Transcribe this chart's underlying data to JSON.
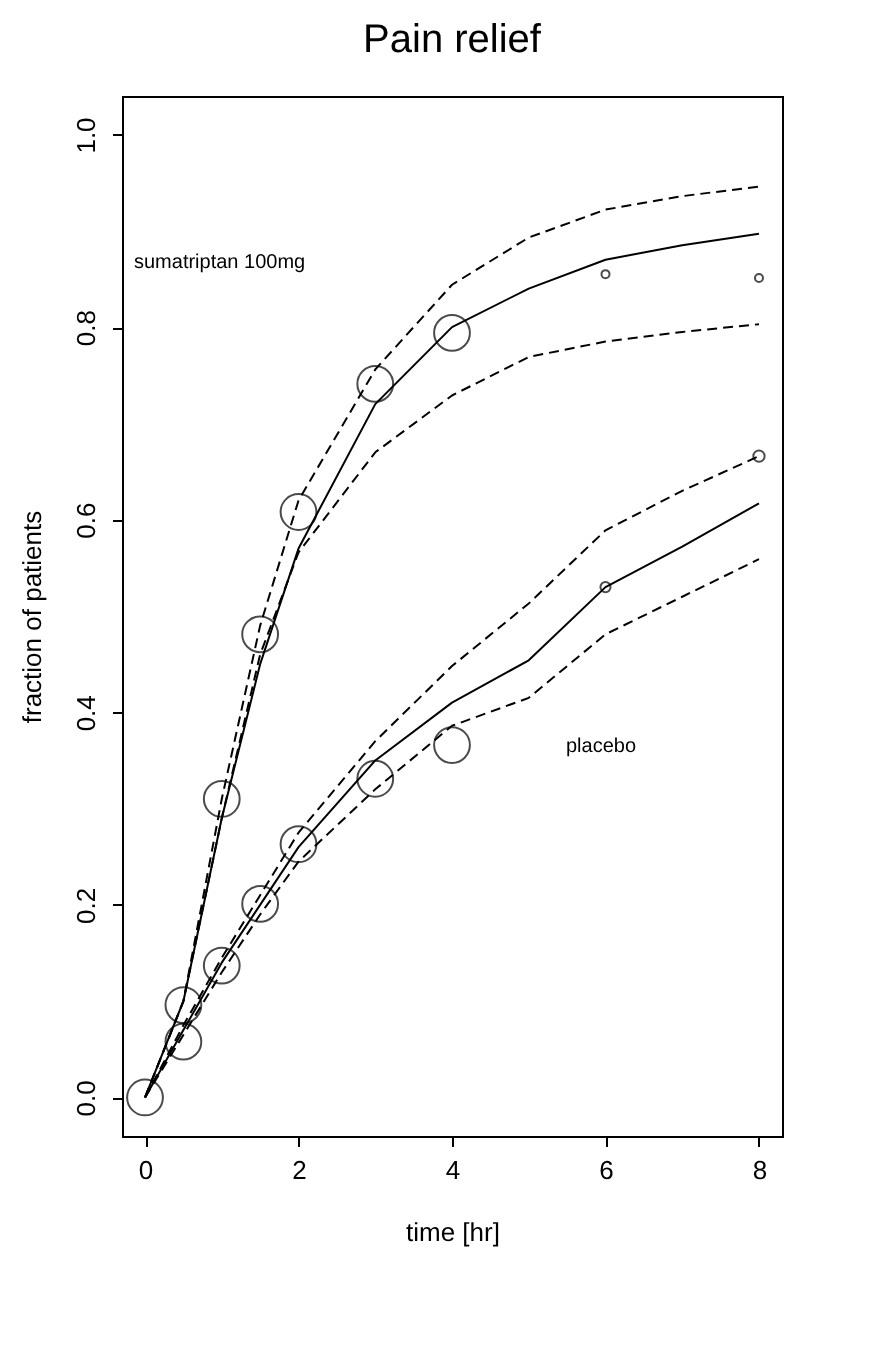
{
  "chart_data": {
    "type": "line",
    "title": "Pain relief",
    "xlabel": "time [hr]",
    "ylabel": "fraction of patients",
    "xlim": [
      -0.3,
      8.3
    ],
    "ylim": [
      -0.04,
      1.04
    ],
    "xticks": [
      0,
      2,
      4,
      6,
      8
    ],
    "yticks": [
      {
        "value": 0,
        "label": "0.0"
      },
      {
        "value": 0.2,
        "label": "0.2"
      },
      {
        "value": 0.4,
        "label": "0.4"
      },
      {
        "value": 0.6,
        "label": "0.6"
      },
      {
        "value": 0.8,
        "label": "0.8"
      },
      {
        "value": 1,
        "label": "1.0"
      }
    ],
    "grid": false,
    "annotations": [
      "sumatriptan 100mg",
      "placebo"
    ],
    "series": [
      {
        "color": "#000000",
        "line_style": "solid",
        "x": [
          0,
          0.5,
          1,
          1.5,
          2,
          3,
          4,
          5,
          6,
          7,
          8
        ],
        "values": [
          0,
          0.1,
          0.29,
          0.45,
          0.57,
          0.72,
          0.8,
          0.84,
          0.87,
          0.885,
          0.897
        ]
      },
      {
        "color": "#000000",
        "line_style": "dashed",
        "x": [
          0,
          0.5,
          1,
          1.5,
          2,
          3,
          4,
          5,
          6,
          7,
          8
        ],
        "values": [
          0,
          0.1,
          0.31,
          0.49,
          0.62,
          0.756,
          0.844,
          0.893,
          0.922,
          0.936,
          0.946
        ]
      },
      {
        "color": "#000000",
        "line_style": "dashed",
        "x": [
          0,
          0.5,
          1,
          1.5,
          2,
          3,
          4,
          5,
          6,
          7,
          8
        ],
        "values": [
          0,
          0.1,
          0.29,
          0.46,
          0.566,
          0.67,
          0.729,
          0.769,
          0.785,
          0.795,
          0.803
        ]
      },
      {
        "color": "#000000",
        "line_style": "solid",
        "x": [
          0,
          0.5,
          1,
          1.5,
          2,
          3,
          4,
          5,
          6,
          7,
          8
        ],
        "values": [
          0,
          0.07,
          0.14,
          0.2,
          0.26,
          0.35,
          0.41,
          0.454,
          0.53,
          0.572,
          0.617
        ]
      },
      {
        "color": "#000000",
        "line_style": "dashed",
        "x": [
          0,
          0.5,
          1,
          1.5,
          2,
          3,
          4,
          5,
          6,
          7,
          8
        ],
        "values": [
          0,
          0.075,
          0.145,
          0.21,
          0.275,
          0.37,
          0.448,
          0.513,
          0.589,
          0.63,
          0.666
        ]
      },
      {
        "color": "#000000",
        "line_style": "dashed",
        "x": [
          0,
          0.5,
          1,
          1.5,
          2,
          3,
          4,
          5,
          6,
          7,
          8
        ],
        "values": [
          0,
          0.065,
          0.13,
          0.19,
          0.245,
          0.32,
          0.386,
          0.415,
          0.481,
          0.52,
          0.559
        ]
      },
      {
        "type": "bubble",
        "color": "#000000",
        "x": [
          0,
          0.5,
          1,
          1.5,
          2,
          3,
          4,
          6,
          8
        ],
        "values": [
          0,
          0.096,
          0.31,
          0.481,
          0.608,
          0.741,
          0.794,
          0.855,
          0.851
        ],
        "sizes": [
          1,
          1,
          1,
          1,
          1,
          1,
          1,
          0.05,
          0.05
        ]
      },
      {
        "type": "bubble",
        "color": "#000000",
        "x": [
          0.5,
          1,
          1.5,
          2,
          3,
          4,
          6,
          8
        ],
        "values": [
          0.058,
          0.137,
          0.201,
          0.263,
          0.331,
          0.366,
          0.53,
          0.666
        ],
        "sizes": [
          1,
          1,
          1,
          1,
          1,
          1,
          0.08,
          0.1
        ]
      }
    ]
  }
}
